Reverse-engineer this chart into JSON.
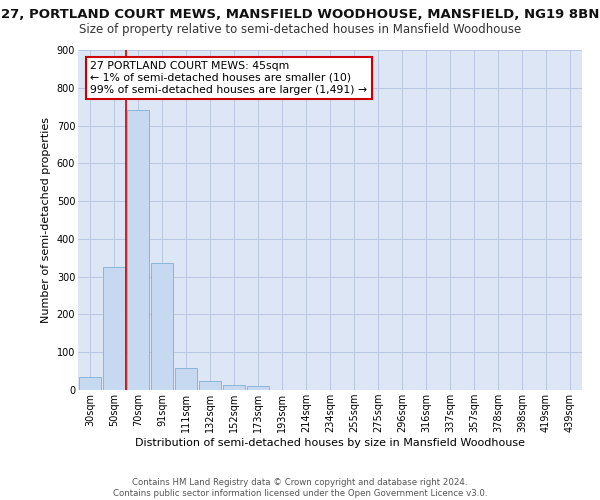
{
  "title": "27, PORTLAND COURT MEWS, MANSFIELD WOODHOUSE, MANSFIELD, NG19 8BN",
  "subtitle": "Size of property relative to semi-detached houses in Mansfield Woodhouse",
  "xlabel": "Distribution of semi-detached houses by size in Mansfield Woodhouse",
  "ylabel": "Number of semi-detached properties",
  "footer": "Contains HM Land Registry data © Crown copyright and database right 2024.\nContains public sector information licensed under the Open Government Licence v3.0.",
  "categories": [
    "30sqm",
    "50sqm",
    "70sqm",
    "91sqm",
    "111sqm",
    "132sqm",
    "152sqm",
    "173sqm",
    "193sqm",
    "214sqm",
    "234sqm",
    "255sqm",
    "275sqm",
    "296sqm",
    "316sqm",
    "337sqm",
    "357sqm",
    "378sqm",
    "398sqm",
    "419sqm",
    "439sqm"
  ],
  "values": [
    35,
    325,
    740,
    335,
    58,
    25,
    13,
    10,
    0,
    0,
    0,
    0,
    0,
    0,
    0,
    0,
    0,
    0,
    0,
    0,
    0
  ],
  "bar_color": "#c6d9f0",
  "bar_edge_color": "#7fafd4",
  "property_line_x": 1.5,
  "annotation_text": "27 PORTLAND COURT MEWS: 45sqm\n← 1% of semi-detached houses are smaller (10)\n99% of semi-detached houses are larger (1,491) →",
  "annotation_box_color": "#ffffff",
  "annotation_border_color": "#cc0000",
  "vline_color": "#cc0000",
  "background_color": "#ffffff",
  "plot_bg_color": "#dce6f5",
  "grid_color": "#b8c8e0",
  "ylim": [
    0,
    900
  ],
  "yticks": [
    0,
    100,
    200,
    300,
    400,
    500,
    600,
    700,
    800,
    900
  ],
  "title_fontsize": 9.5,
  "subtitle_fontsize": 8.5,
  "ylabel_fontsize": 8.0,
  "xlabel_fontsize": 8.0,
  "tick_fontsize": 7.0,
  "footer_fontsize": 6.2,
  "annotation_fontsize": 7.8
}
